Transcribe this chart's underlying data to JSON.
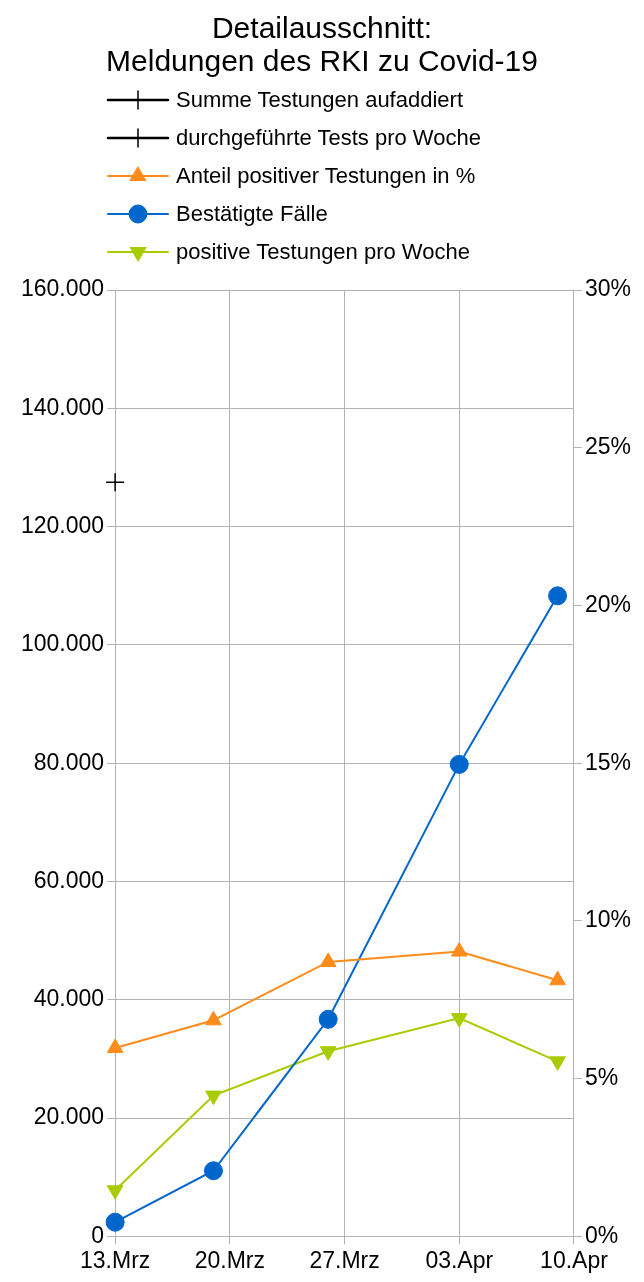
{
  "chart_data": {
    "type": "line",
    "title": "Detailausschnitt:\nMeldungen des RKI zu Covid-19",
    "x": [
      "--03-13",
      "--03-19",
      "--03-26",
      "--04-03",
      "--04-09"
    ],
    "series": [
      {
        "name": "Summe Testungen aufaddiert",
        "color": "#000000",
        "marker": "cross",
        "values": [
          null,
          null,
          null,
          null,
          null
        ]
      },
      {
        "name": "durchgeführte Tests pro Woche",
        "color": "#000000",
        "marker": "cross",
        "values": [
          127500,
          null,
          null,
          null,
          null
        ]
      },
      {
        "name": "Anteil positiver Testungen in %",
        "color": "#ff8c1a",
        "marker": "triangle",
        "axis": "y2",
        "values": [
          5.97,
          6.85,
          8.7,
          9.03,
          8.12
        ]
      },
      {
        "name": "Bestätigte Fälle",
        "color": "#0066cc",
        "marker": "circle",
        "values": [
          2400,
          11100,
          36700,
          79800,
          108300
        ]
      },
      {
        "name": "positive Testungen pro Woche",
        "color": "#a8cc00",
        "marker": "triangle-down",
        "values": [
          7800,
          23800,
          31300,
          36900,
          29600
        ]
      }
    ],
    "xlim": [
      "--03-13",
      "--04-10"
    ],
    "xticks": [
      {
        "value": "--03-13",
        "label": "13.Mrz"
      },
      {
        "value": "--03-20",
        "label": "20.Mrz"
      },
      {
        "value": "--03-27",
        "label": "27.Mrz"
      },
      {
        "value": "--04-03",
        "label": "03.Apr"
      },
      {
        "value": "--04-10",
        "label": "10.Apr"
      }
    ],
    "ylim": [
      0,
      160000
    ],
    "yticks": [
      0,
      {
        "value": 20000,
        "label": "20.000"
      },
      {
        "value": 40000,
        "label": "40.000"
      },
      {
        "value": 60000,
        "label": "60.000"
      },
      {
        "value": 80000,
        "label": "80.000"
      },
      {
        "value": 100000,
        "label": "100.000"
      },
      {
        "value": 120000,
        "label": "120.000"
      },
      {
        "value": 140000,
        "label": "140.000"
      },
      {
        "value": 160000,
        "label": "160.000"
      }
    ],
    "y2lim": [
      0,
      30
    ],
    "y2ticks": [
      {
        "value": 0,
        "label": "0%"
      },
      {
        "value": 5,
        "label": "5%"
      },
      {
        "value": 10,
        "label": "10%"
      },
      {
        "value": 15,
        "label": "15%"
      },
      {
        "value": 20,
        "label": "20%"
      },
      {
        "value": 25,
        "label": "25%"
      },
      {
        "value": 30,
        "label": "30%"
      }
    ],
    "grid": true,
    "legend": "top"
  }
}
